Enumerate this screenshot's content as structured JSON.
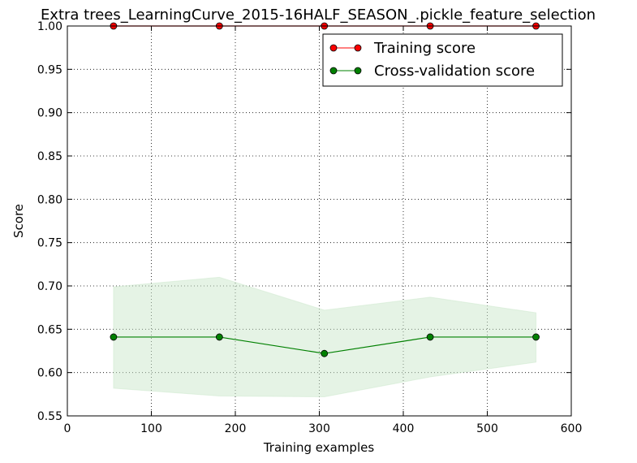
{
  "chart_data": {
    "type": "line",
    "title": "Extra trees_LearningCurve_2015-16HALF_SEASON_.pickle_feature_selection",
    "xlabel": "Training examples",
    "ylabel": "Score",
    "xlim": [
      0,
      600
    ],
    "ylim": [
      0.55,
      1.0
    ],
    "x_ticks": [
      0,
      100,
      200,
      300,
      400,
      500,
      600
    ],
    "y_ticks": [
      0.55,
      0.6,
      0.65,
      0.7,
      0.75,
      0.8,
      0.85,
      0.9,
      0.95,
      1.0
    ],
    "x_tick_labels": [
      "0",
      "100",
      "200",
      "300",
      "400",
      "500",
      "600"
    ],
    "y_tick_labels": [
      "0.55",
      "0.60",
      "0.65",
      "0.70",
      "0.75",
      "0.80",
      "0.85",
      "0.90",
      "0.95",
      "1.00"
    ],
    "grid": true,
    "legend_position": "top-right",
    "x": [
      55,
      181,
      306,
      432,
      558
    ],
    "series": [
      {
        "name": "Training score",
        "color": "#ff0000",
        "values": [
          1.0,
          1.0,
          1.0,
          1.0,
          1.0
        ],
        "band_upper": [
          1.0,
          1.0,
          1.0,
          1.0,
          1.0
        ],
        "band_lower": [
          1.0,
          1.0,
          1.0,
          1.0,
          1.0
        ]
      },
      {
        "name": "Cross-validation score",
        "color": "#008000",
        "band_color": "#cce8cc",
        "values": [
          0.641,
          0.641,
          0.622,
          0.641,
          0.641
        ],
        "band_upper": [
          0.699,
          0.71,
          0.672,
          0.687,
          0.669
        ],
        "band_lower": [
          0.582,
          0.573,
          0.572,
          0.595,
          0.612
        ]
      }
    ]
  }
}
